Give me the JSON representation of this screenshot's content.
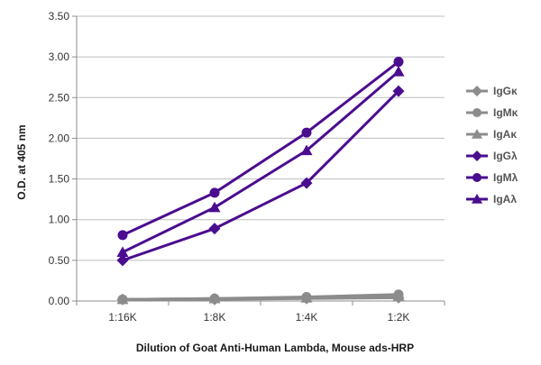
{
  "chart_data": {
    "type": "line",
    "title": "",
    "xlabel": "Dilution of Goat Anti-Human Lambda, Mouse ads-HRP",
    "ylabel": "O.D. at 405 nm",
    "categories": [
      "1:16K",
      "1:8K",
      "1:4K",
      "1:2K"
    ],
    "ylim": [
      0,
      3.5
    ],
    "yticks": [
      "0.00",
      "0.50",
      "1.00",
      "1.50",
      "2.00",
      "2.50",
      "3.00",
      "3.50"
    ],
    "grid": "horizontal",
    "legend_position": "right",
    "series": [
      {
        "name": "IgGκ",
        "values": [
          0.02,
          0.02,
          0.03,
          0.04
        ],
        "color": "#8c8c8c",
        "marker": "diamond"
      },
      {
        "name": "IgMκ",
        "values": [
          0.02,
          0.03,
          0.05,
          0.08
        ],
        "color": "#8c8c8c",
        "marker": "circle"
      },
      {
        "name": "IgAκ",
        "values": [
          0.02,
          0.03,
          0.04,
          0.06
        ],
        "color": "#8c8c8c",
        "marker": "triangle"
      },
      {
        "name": "IgGλ",
        "values": [
          0.5,
          0.89,
          1.45,
          2.58
        ],
        "color": "#4b0d8f",
        "marker": "diamond"
      },
      {
        "name": "IgMλ",
        "values": [
          0.81,
          1.33,
          2.07,
          2.94
        ],
        "color": "#4b0d8f",
        "marker": "circle"
      },
      {
        "name": "IgAλ",
        "values": [
          0.6,
          1.15,
          1.85,
          2.82
        ],
        "color": "#4b0d8f",
        "marker": "triangle"
      }
    ]
  }
}
